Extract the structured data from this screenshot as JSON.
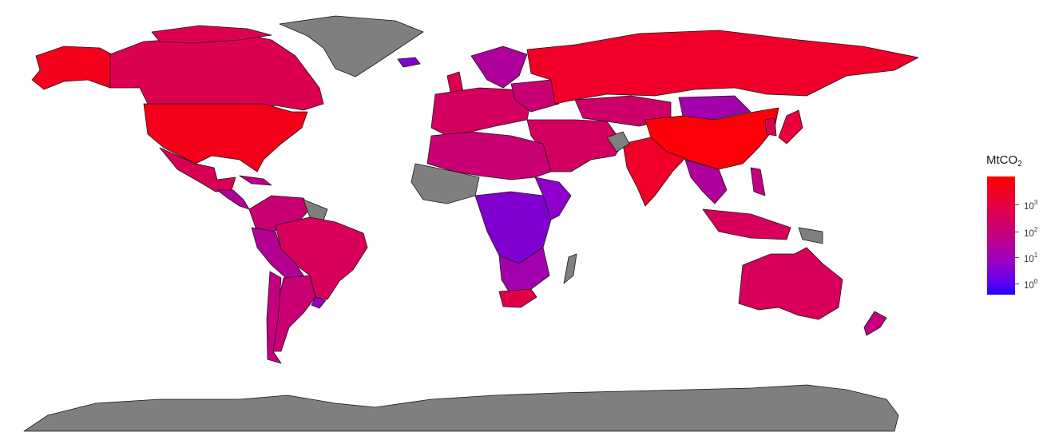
{
  "legend": {
    "title_main": "MtCO",
    "title_sub": "2",
    "colors": {
      "high": "#ff0000",
      "mid": "#c40080",
      "low": "#2000ff",
      "no_data": "#7f7f7f"
    },
    "ticks": [
      {
        "base": "10",
        "exp": "3"
      },
      {
        "base": "10",
        "exp": "2"
      },
      {
        "base": "10",
        "exp": "1"
      },
      {
        "base": "10",
        "exp": "0"
      }
    ]
  },
  "map": {
    "projection": "equirectangular world",
    "scale": "log"
  }
}
